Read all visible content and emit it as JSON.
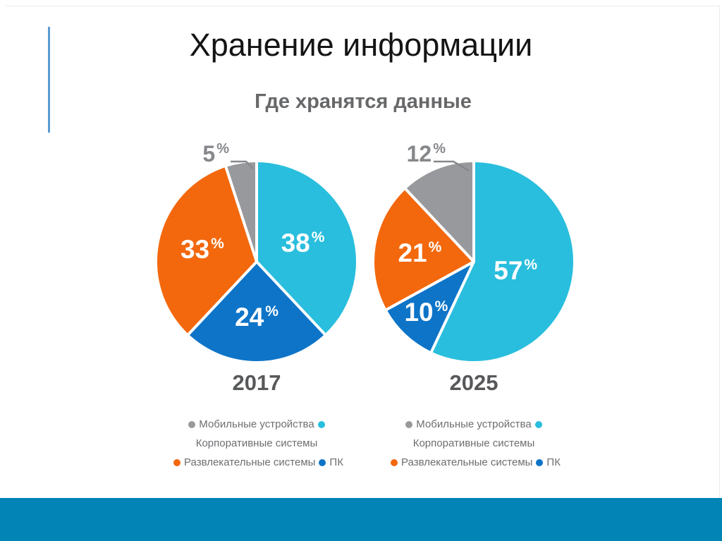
{
  "slide": {
    "title": "Хранение информации"
  },
  "colors": {
    "title_text": "#141414",
    "subtitle_text": "#67686a",
    "accent_line": "#5b9bd5",
    "bottom_band": "#0284b6",
    "slice_value_text": "#ffffff",
    "outside_label_text": "#86888b",
    "year_text": "#57585a",
    "legend_text": "#6d6e71"
  },
  "chart_data": {
    "type": "pie",
    "title": "Где хранятся данные",
    "unit": "%",
    "legend_position": "bottom",
    "legend_items": [
      {
        "label": "Мобильные устройства",
        "color": "#97999c"
      },
      {
        "label": "Корпоративные системы",
        "color": "#29bedd"
      },
      {
        "label": "Развлекательные системы",
        "color": "#f3680d"
      },
      {
        "label": "ПК",
        "color": "#0d74c8"
      }
    ],
    "charts": [
      {
        "year": "2017",
        "slices": [
          {
            "label": "Корпоративные системы",
            "value": 38,
            "color": "#29bedd",
            "label_r": 0.5
          },
          {
            "label": "ПК",
            "value": 24,
            "color": "#0d74c8",
            "label_r": 0.56
          },
          {
            "label": "Развлекательные системы",
            "value": 33,
            "color": "#f3680d",
            "label_r": 0.56
          },
          {
            "label": "Мобильные устройства",
            "value": 5,
            "color": "#97999c",
            "external": true
          }
        ]
      },
      {
        "year": "2025",
        "slices": [
          {
            "label": "Корпоративные системы",
            "value": 57,
            "color": "#29bedd",
            "label_r": 0.43
          },
          {
            "label": "ПК",
            "value": 10,
            "color": "#0d74c8",
            "label_r": 0.7
          },
          {
            "label": "Развлекательные системы",
            "value": 21,
            "color": "#f3680d",
            "label_r": 0.55
          },
          {
            "label": "Мобильные устройства",
            "value": 12,
            "color": "#97999c",
            "external": true
          }
        ]
      }
    ]
  }
}
